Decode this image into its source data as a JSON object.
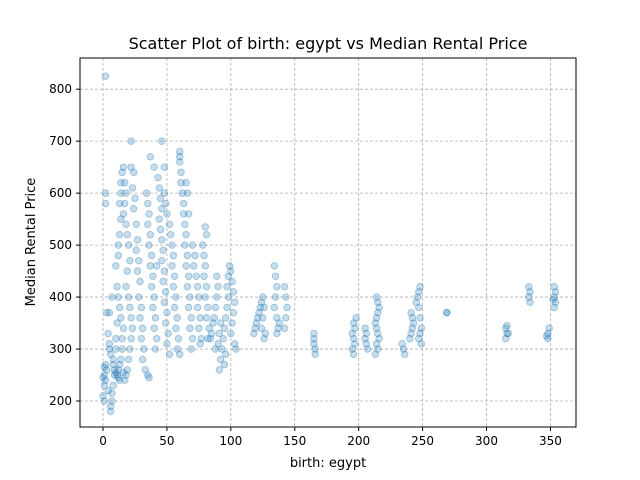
{
  "chart_data": {
    "type": "scatter",
    "title": "Scatter Plot of birth: egypt vs Median Rental Price",
    "xlabel": "birth: egypt",
    "ylabel": "Median Rental Price",
    "xlim": [
      -18,
      370
    ],
    "ylim": [
      150,
      860
    ],
    "xticks": [
      0,
      50,
      100,
      150,
      200,
      250,
      300,
      350
    ],
    "yticks": [
      200,
      300,
      400,
      500,
      600,
      700,
      800
    ],
    "grid": true,
    "point_color": "#1f77b4",
    "point_alpha": 0.25,
    "series": [
      {
        "points": [
          [
            2,
            825
          ],
          [
            2,
            600
          ],
          [
            2,
            580
          ],
          [
            1,
            250
          ],
          [
            1,
            230
          ],
          [
            0,
            210
          ],
          [
            1,
            200
          ],
          [
            2,
            240
          ],
          [
            3,
            260
          ],
          [
            2,
            270
          ],
          [
            1,
            265
          ],
          [
            0,
            245
          ],
          [
            4,
            220
          ],
          [
            5,
            300
          ],
          [
            6,
            180
          ],
          [
            6,
            190
          ],
          [
            7,
            200
          ],
          [
            7,
            215
          ],
          [
            8,
            230
          ],
          [
            9,
            250
          ],
          [
            8,
            280
          ],
          [
            10,
            300
          ],
          [
            10,
            320
          ],
          [
            11,
            350
          ],
          [
            5,
            370
          ],
          [
            7,
            400
          ],
          [
            3,
            370
          ],
          [
            4,
            330
          ],
          [
            5,
            310
          ],
          [
            6,
            290
          ],
          [
            8,
            270
          ],
          [
            9,
            260
          ],
          [
            10,
            255
          ],
          [
            11,
            250
          ],
          [
            12,
            245
          ],
          [
            13,
            240
          ],
          [
            12,
            260
          ],
          [
            13,
            270
          ],
          [
            14,
            280
          ],
          [
            15,
            300
          ],
          [
            15,
            320
          ],
          [
            16,
            340
          ],
          [
            14,
            360
          ],
          [
            13,
            380
          ],
          [
            12,
            400
          ],
          [
            11,
            420
          ],
          [
            10,
            460
          ],
          [
            12,
            480
          ],
          [
            12,
            500
          ],
          [
            13,
            520
          ],
          [
            14,
            550
          ],
          [
            13,
            580
          ],
          [
            14,
            600
          ],
          [
            14,
            620
          ],
          [
            15,
            640
          ],
          [
            16,
            650
          ],
          [
            17,
            620
          ],
          [
            18,
            600
          ],
          [
            17,
            580
          ],
          [
            16,
            560
          ],
          [
            18,
            540
          ],
          [
            19,
            520
          ],
          [
            20,
            500
          ],
          [
            21,
            470
          ],
          [
            19,
            450
          ],
          [
            18,
            420
          ],
          [
            20,
            400
          ],
          [
            21,
            380
          ],
          [
            22,
            360
          ],
          [
            23,
            340
          ],
          [
            22,
            320
          ],
          [
            21,
            300
          ],
          [
            20,
            280
          ],
          [
            19,
            260
          ],
          [
            18,
            250
          ],
          [
            17,
            240
          ],
          [
            16,
            255
          ],
          [
            22,
            700
          ],
          [
            22,
            650
          ],
          [
            24,
            640
          ],
          [
            23,
            610
          ],
          [
            25,
            590
          ],
          [
            24,
            570
          ],
          [
            26,
            540
          ],
          [
            27,
            510
          ],
          [
            26,
            490
          ],
          [
            28,
            470
          ],
          [
            27,
            450
          ],
          [
            29,
            430
          ],
          [
            28,
            400
          ],
          [
            30,
            380
          ],
          [
            29,
            360
          ],
          [
            31,
            340
          ],
          [
            30,
            320
          ],
          [
            32,
            300
          ],
          [
            31,
            280
          ],
          [
            33,
            260
          ],
          [
            34,
            600
          ],
          [
            35,
            580
          ],
          [
            36,
            560
          ],
          [
            35,
            540
          ],
          [
            37,
            520
          ],
          [
            36,
            500
          ],
          [
            38,
            480
          ],
          [
            37,
            460
          ],
          [
            39,
            440
          ],
          [
            38,
            420
          ],
          [
            40,
            400
          ],
          [
            39,
            380
          ],
          [
            41,
            360
          ],
          [
            40,
            340
          ],
          [
            42,
            320
          ],
          [
            41,
            300
          ],
          [
            37,
            670
          ],
          [
            40,
            650
          ],
          [
            43,
            630
          ],
          [
            44,
            610
          ],
          [
            45,
            590
          ],
          [
            46,
            570
          ],
          [
            44,
            550
          ],
          [
            45,
            530
          ],
          [
            46,
            510
          ],
          [
            47,
            490
          ],
          [
            46,
            470
          ],
          [
            48,
            450
          ],
          [
            47,
            430
          ],
          [
            49,
            410
          ],
          [
            48,
            390
          ],
          [
            50,
            370
          ],
          [
            49,
            350
          ],
          [
            51,
            330
          ],
          [
            50,
            310
          ],
          [
            52,
            290
          ],
          [
            35,
            250
          ],
          [
            36,
            245
          ],
          [
            46,
            700
          ],
          [
            48,
            650
          ],
          [
            48,
            600
          ],
          [
            49,
            580
          ],
          [
            50,
            560
          ],
          [
            52,
            540
          ],
          [
            53,
            520
          ],
          [
            54,
            500
          ],
          [
            55,
            480
          ],
          [
            54,
            460
          ],
          [
            56,
            440
          ],
          [
            55,
            420
          ],
          [
            57,
            400
          ],
          [
            56,
            380
          ],
          [
            58,
            360
          ],
          [
            57,
            340
          ],
          [
            59,
            320
          ],
          [
            58,
            300
          ],
          [
            60,
            290
          ],
          [
            42,
            460
          ],
          [
            60,
            680
          ],
          [
            60,
            670
          ],
          [
            60,
            660
          ],
          [
            61,
            640
          ],
          [
            61,
            620
          ],
          [
            62,
            600
          ],
          [
            63,
            580
          ],
          [
            63,
            560
          ],
          [
            64,
            540
          ],
          [
            65,
            520
          ],
          [
            64,
            500
          ],
          [
            66,
            480
          ],
          [
            65,
            460
          ],
          [
            67,
            440
          ],
          [
            66,
            420
          ],
          [
            68,
            400
          ],
          [
            67,
            380
          ],
          [
            69,
            360
          ],
          [
            68,
            340
          ],
          [
            70,
            320
          ],
          [
            69,
            300
          ],
          [
            65,
            620
          ],
          [
            66,
            600
          ],
          [
            67,
            560
          ],
          [
            70,
            500
          ],
          [
            72,
            480
          ],
          [
            71,
            460
          ],
          [
            73,
            440
          ],
          [
            74,
            420
          ],
          [
            75,
            400
          ],
          [
            74,
            380
          ],
          [
            76,
            360
          ],
          [
            75,
            340
          ],
          [
            77,
            320
          ],
          [
            76,
            310
          ],
          [
            78,
            500
          ],
          [
            79,
            480
          ],
          [
            80,
            460
          ],
          [
            79,
            440
          ],
          [
            81,
            420
          ],
          [
            80,
            400
          ],
          [
            82,
            380
          ],
          [
            81,
            360
          ],
          [
            83,
            340
          ],
          [
            82,
            320
          ],
          [
            80,
            535
          ],
          [
            81,
            520
          ],
          [
            84,
            320
          ],
          [
            85,
            330
          ],
          [
            86,
            350
          ],
          [
            87,
            360
          ],
          [
            88,
            380
          ],
          [
            89,
            400
          ],
          [
            90,
            420
          ],
          [
            89,
            440
          ],
          [
            88,
            300
          ],
          [
            90,
            310
          ],
          [
            91,
            330
          ],
          [
            92,
            350
          ],
          [
            91,
            260
          ],
          [
            92,
            280
          ],
          [
            93,
            300
          ],
          [
            94,
            320
          ],
          [
            95,
            340
          ],
          [
            96,
            360
          ],
          [
            97,
            380
          ],
          [
            98,
            400
          ],
          [
            97,
            420
          ],
          [
            98,
            440
          ],
          [
            99,
            460
          ],
          [
            100,
            450
          ],
          [
            101,
            430
          ],
          [
            102,
            410
          ],
          [
            103,
            390
          ],
          [
            102,
            370
          ],
          [
            101,
            350
          ],
          [
            100,
            330
          ],
          [
            103,
            310
          ],
          [
            104,
            300
          ],
          [
            95,
            270
          ],
          [
            96,
            290
          ],
          [
            118,
            330
          ],
          [
            119,
            340
          ],
          [
            120,
            350
          ],
          [
            121,
            360
          ],
          [
            122,
            370
          ],
          [
            123,
            380
          ],
          [
            124,
            390
          ],
          [
            125,
            400
          ],
          [
            126,
            380
          ],
          [
            125,
            360
          ],
          [
            124,
            340
          ],
          [
            126,
            320
          ],
          [
            127,
            330
          ],
          [
            134,
            460
          ],
          [
            135,
            440
          ],
          [
            136,
            420
          ],
          [
            135,
            400
          ],
          [
            134,
            380
          ],
          [
            136,
            360
          ],
          [
            137,
            340
          ],
          [
            136,
            330
          ],
          [
            138,
            350
          ],
          [
            142,
            420
          ],
          [
            143,
            400
          ],
          [
            144,
            380
          ],
          [
            143,
            360
          ],
          [
            142,
            340
          ],
          [
            165,
            320
          ],
          [
            165,
            310
          ],
          [
            166,
            300
          ],
          [
            166,
            290
          ],
          [
            165,
            330
          ],
          [
            196,
            350
          ],
          [
            197,
            340
          ],
          [
            195,
            330
          ],
          [
            196,
            320
          ],
          [
            197,
            310
          ],
          [
            195,
            300
          ],
          [
            196,
            290
          ],
          [
            198,
            360
          ],
          [
            205,
            340
          ],
          [
            206,
            330
          ],
          [
            205,
            320
          ],
          [
            206,
            310
          ],
          [
            207,
            300
          ],
          [
            214,
            400
          ],
          [
            215,
            390
          ],
          [
            216,
            380
          ],
          [
            215,
            370
          ],
          [
            214,
            360
          ],
          [
            213,
            350
          ],
          [
            214,
            340
          ],
          [
            215,
            330
          ],
          [
            216,
            320
          ],
          [
            214,
            310
          ],
          [
            215,
            300
          ],
          [
            213,
            290
          ],
          [
            234,
            310
          ],
          [
            235,
            300
          ],
          [
            236,
            290
          ],
          [
            240,
            320
          ],
          [
            241,
            330
          ],
          [
            242,
            340
          ],
          [
            243,
            350
          ],
          [
            242,
            360
          ],
          [
            241,
            370
          ],
          [
            245,
            390
          ],
          [
            246,
            400
          ],
          [
            247,
            410
          ],
          [
            248,
            420
          ],
          [
            247,
            380
          ],
          [
            248,
            360
          ],
          [
            249,
            340
          ],
          [
            248,
            330
          ],
          [
            247,
            320
          ],
          [
            249,
            310
          ],
          [
            269,
            370
          ],
          [
            269,
            370
          ],
          [
            315,
            320
          ],
          [
            316,
            330
          ],
          [
            315,
            340
          ],
          [
            316,
            345
          ],
          [
            317,
            330
          ],
          [
            333,
            420
          ],
          [
            334,
            410
          ],
          [
            333,
            400
          ],
          [
            334,
            390
          ],
          [
            348,
            330
          ],
          [
            349,
            340
          ],
          [
            348,
            320
          ],
          [
            347,
            325
          ],
          [
            353,
            420
          ],
          [
            354,
            410
          ],
          [
            353,
            400
          ],
          [
            354,
            390
          ],
          [
            353,
            380
          ],
          [
            352,
            395
          ]
        ]
      }
    ]
  }
}
